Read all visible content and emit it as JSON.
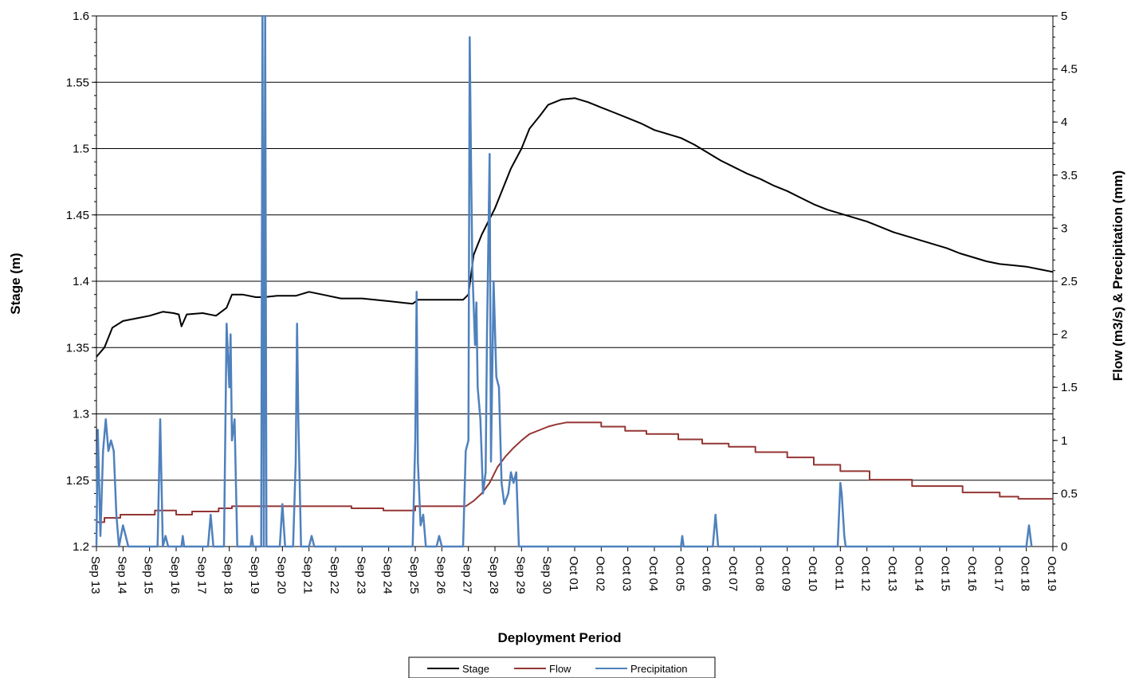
{
  "chart_data": {
    "type": "line",
    "title": "",
    "xlabel": "Deployment Period",
    "ylabel_left": "Stage (m)",
    "ylabel_right": "Flow (m3/s) & Precipitation (mm)",
    "x_tick_labels": [
      "Sep 13",
      "Sep 14",
      "Sep 15",
      "Sep 16",
      "Sep 17",
      "Sep 18",
      "Sep 19",
      "Sep 20",
      "Sep 21",
      "Sep 22",
      "Sep 23",
      "Sep 24",
      "Sep 25",
      "Sep 26",
      "Sep 27",
      "Sep 28",
      "Sep 29",
      "Sep 30",
      "Oct 01",
      "Oct 02",
      "Oct 03",
      "Oct 04",
      "Oct 05",
      "Oct 06",
      "Oct 07",
      "Oct 08",
      "Oct 09",
      "Oct 10",
      "Oct 11",
      "Oct 12",
      "Oct 13",
      "Oct 14",
      "Oct 15",
      "Oct 16",
      "Oct 17",
      "Oct 18",
      "Oct 19"
    ],
    "x_range_days": [
      0,
      36
    ],
    "y_left": {
      "min": 1.2,
      "max": 1.6,
      "step": 0.05,
      "tick_labels": [
        "1.2",
        "1.25",
        "1.3",
        "1.35",
        "1.4",
        "1.45",
        "1.5",
        "1.55",
        "1.6"
      ]
    },
    "y_right": {
      "min": 0,
      "max": 5,
      "step": 0.5,
      "tick_labels": [
        "0",
        "0.5",
        "1",
        "1.5",
        "2",
        "2.5",
        "3",
        "3.5",
        "4",
        "4.5",
        "5"
      ]
    },
    "grid": "horizontal",
    "legend_position": "bottom-center",
    "series": [
      {
        "name": "Stage",
        "axis": "left",
        "color": "#000000",
        "points": [
          [
            0,
            1.343
          ],
          [
            0.3,
            1.35
          ],
          [
            0.6,
            1.365
          ],
          [
            1,
            1.37
          ],
          [
            1.5,
            1.372
          ],
          [
            2,
            1.374
          ],
          [
            2.5,
            1.377
          ],
          [
            2.9,
            1.376
          ],
          [
            3.1,
            1.375
          ],
          [
            3.2,
            1.366
          ],
          [
            3.4,
            1.375
          ],
          [
            4,
            1.376
          ],
          [
            4.5,
            1.374
          ],
          [
            4.9,
            1.38
          ],
          [
            5.1,
            1.39
          ],
          [
            5.5,
            1.39
          ],
          [
            6,
            1.388
          ],
          [
            6.3,
            1.388
          ],
          [
            6.8,
            1.389
          ],
          [
            7.5,
            1.389
          ],
          [
            8,
            1.392
          ],
          [
            8.5,
            1.39
          ],
          [
            9.2,
            1.387
          ],
          [
            10,
            1.387
          ],
          [
            11,
            1.385
          ],
          [
            11.9,
            1.383
          ],
          [
            12.1,
            1.386
          ],
          [
            13,
            1.386
          ],
          [
            13.8,
            1.386
          ],
          [
            14,
            1.39
          ],
          [
            14.2,
            1.42
          ],
          [
            14.5,
            1.435
          ],
          [
            15,
            1.455
          ],
          [
            15.3,
            1.47
          ],
          [
            15.6,
            1.485
          ],
          [
            16,
            1.5
          ],
          [
            16.3,
            1.515
          ],
          [
            16.7,
            1.525
          ],
          [
            17,
            1.533
          ],
          [
            17.5,
            1.537
          ],
          [
            18,
            1.538
          ],
          [
            18.5,
            1.535
          ],
          [
            19,
            1.531
          ],
          [
            19.5,
            1.527
          ],
          [
            20,
            1.523
          ],
          [
            20.5,
            1.519
          ],
          [
            21,
            1.514
          ],
          [
            21.5,
            1.511
          ],
          [
            22,
            1.508
          ],
          [
            22.5,
            1.503
          ],
          [
            23,
            1.497
          ],
          [
            23.5,
            1.491
          ],
          [
            24,
            1.486
          ],
          [
            24.5,
            1.481
          ],
          [
            25,
            1.477
          ],
          [
            25.5,
            1.472
          ],
          [
            26,
            1.468
          ],
          [
            26.5,
            1.463
          ],
          [
            27,
            1.458
          ],
          [
            27.5,
            1.454
          ],
          [
            28,
            1.451
          ],
          [
            28.5,
            1.448
          ],
          [
            29,
            1.445
          ],
          [
            29.5,
            1.441
          ],
          [
            30,
            1.437
          ],
          [
            30.5,
            1.434
          ],
          [
            31,
            1.431
          ],
          [
            31.5,
            1.428
          ],
          [
            32,
            1.425
          ],
          [
            32.5,
            1.421
          ],
          [
            33,
            1.418
          ],
          [
            33.5,
            1.415
          ],
          [
            34,
            1.413
          ],
          [
            34.5,
            1.412
          ],
          [
            35,
            1.411
          ],
          [
            35.5,
            1.409
          ],
          [
            36,
            1.407
          ]
        ]
      },
      {
        "name": "Flow",
        "axis": "right",
        "color": "#943634",
        "points": [
          [
            0,
            0.23
          ],
          [
            0.3,
            0.23
          ],
          [
            0.3,
            0.27
          ],
          [
            0.9,
            0.27
          ],
          [
            0.9,
            0.3
          ],
          [
            2.2,
            0.3
          ],
          [
            2.2,
            0.34
          ],
          [
            3,
            0.34
          ],
          [
            3,
            0.3
          ],
          [
            3.6,
            0.3
          ],
          [
            3.6,
            0.33
          ],
          [
            4.6,
            0.33
          ],
          [
            4.6,
            0.36
          ],
          [
            5.1,
            0.36
          ],
          [
            5.1,
            0.38
          ],
          [
            9.6,
            0.38
          ],
          [
            9.6,
            0.36
          ],
          [
            10.8,
            0.36
          ],
          [
            10.8,
            0.34
          ],
          [
            12,
            0.34
          ],
          [
            12,
            0.38
          ],
          [
            13.9,
            0.38
          ],
          [
            14.2,
            0.43
          ],
          [
            14.5,
            0.5
          ],
          [
            14.8,
            0.6
          ],
          [
            15.1,
            0.75
          ],
          [
            15.4,
            0.85
          ],
          [
            15.7,
            0.93
          ],
          [
            16,
            1.0
          ],
          [
            16.3,
            1.06
          ],
          [
            16.7,
            1.1
          ],
          [
            17,
            1.13
          ],
          [
            17.3,
            1.15
          ],
          [
            17.7,
            1.17
          ],
          [
            19,
            1.17
          ],
          [
            19,
            1.13
          ],
          [
            19.9,
            1.13
          ],
          [
            19.9,
            1.09
          ],
          [
            20.7,
            1.09
          ],
          [
            20.7,
            1.06
          ],
          [
            21.9,
            1.06
          ],
          [
            21.9,
            1.01
          ],
          [
            22.8,
            1.01
          ],
          [
            22.8,
            0.97
          ],
          [
            23.8,
            0.97
          ],
          [
            23.8,
            0.94
          ],
          [
            24.8,
            0.94
          ],
          [
            24.8,
            0.89
          ],
          [
            26,
            0.89
          ],
          [
            26,
            0.84
          ],
          [
            27,
            0.84
          ],
          [
            27,
            0.77
          ],
          [
            28,
            0.77
          ],
          [
            28,
            0.71
          ],
          [
            29.1,
            0.71
          ],
          [
            29.1,
            0.63
          ],
          [
            30.7,
            0.63
          ],
          [
            30.7,
            0.57
          ],
          [
            32.6,
            0.57
          ],
          [
            32.6,
            0.51
          ],
          [
            34,
            0.51
          ],
          [
            34,
            0.47
          ],
          [
            34.7,
            0.47
          ],
          [
            34.7,
            0.45
          ],
          [
            36,
            0.45
          ]
        ]
      },
      {
        "name": "Precipitation",
        "axis": "right",
        "color": "#4F81BD",
        "points": [
          [
            0,
            0
          ],
          [
            0.05,
            1.1
          ],
          [
            0.15,
            0.1
          ],
          [
            0.25,
            0.9
          ],
          [
            0.35,
            1.2
          ],
          [
            0.45,
            0.9
          ],
          [
            0.55,
            1.0
          ],
          [
            0.65,
            0.9
          ],
          [
            0.75,
            0.3
          ],
          [
            0.85,
            0
          ],
          [
            1.0,
            0.2
          ],
          [
            1.1,
            0.1
          ],
          [
            1.2,
            0
          ],
          [
            2.3,
            0
          ],
          [
            2.4,
            1.2
          ],
          [
            2.5,
            0
          ],
          [
            2.6,
            0.1
          ],
          [
            2.7,
            0
          ],
          [
            3.2,
            0
          ],
          [
            3.25,
            0.1
          ],
          [
            3.3,
            0
          ],
          [
            4.2,
            0
          ],
          [
            4.3,
            0.3
          ],
          [
            4.4,
            0
          ],
          [
            4.8,
            0
          ],
          [
            4.9,
            2.1
          ],
          [
            5.0,
            1.5
          ],
          [
            5.05,
            2.0
          ],
          [
            5.1,
            1.0
          ],
          [
            5.2,
            1.2
          ],
          [
            5.3,
            0
          ],
          [
            5.8,
            0
          ],
          [
            5.85,
            0.1
          ],
          [
            5.9,
            0
          ],
          [
            6.2,
            0
          ],
          [
            6.25,
            5.0
          ],
          [
            6.3,
            0
          ],
          [
            6.35,
            5.0
          ],
          [
            6.4,
            0
          ],
          [
            6.9,
            0
          ],
          [
            7.0,
            0.4
          ],
          [
            7.1,
            0
          ],
          [
            7.4,
            0
          ],
          [
            7.5,
            0.8
          ],
          [
            7.55,
            2.1
          ],
          [
            7.6,
            1.2
          ],
          [
            7.7,
            0
          ],
          [
            8.0,
            0
          ],
          [
            8.1,
            0.1
          ],
          [
            8.2,
            0
          ],
          [
            11.9,
            0
          ],
          [
            12.0,
            1.0
          ],
          [
            12.05,
            2.4
          ],
          [
            12.1,
            0.8
          ],
          [
            12.2,
            0.2
          ],
          [
            12.3,
            0.3
          ],
          [
            12.4,
            0
          ],
          [
            12.8,
            0
          ],
          [
            12.9,
            0.1
          ],
          [
            13.0,
            0
          ],
          [
            13.8,
            0
          ],
          [
            13.9,
            0.9
          ],
          [
            14.0,
            1.0
          ],
          [
            14.05,
            4.8
          ],
          [
            14.1,
            3.6
          ],
          [
            14.15,
            2.6
          ],
          [
            14.25,
            1.9
          ],
          [
            14.3,
            2.3
          ],
          [
            14.35,
            1.5
          ],
          [
            14.45,
            1.2
          ],
          [
            14.55,
            0.5
          ],
          [
            14.65,
            0.7
          ],
          [
            14.7,
            2.0
          ],
          [
            14.8,
            3.7
          ],
          [
            14.85,
            0.8
          ],
          [
            14.95,
            2.5
          ],
          [
            15.05,
            1.6
          ],
          [
            15.15,
            1.5
          ],
          [
            15.25,
            0.6
          ],
          [
            15.35,
            0.4
          ],
          [
            15.5,
            0.5
          ],
          [
            15.6,
            0.7
          ],
          [
            15.7,
            0.6
          ],
          [
            15.8,
            0.7
          ],
          [
            15.9,
            0
          ],
          [
            16.1,
            0
          ],
          [
            22.0,
            0
          ],
          [
            22.05,
            0.1
          ],
          [
            22.1,
            0
          ],
          [
            23.2,
            0
          ],
          [
            23.3,
            0.3
          ],
          [
            23.4,
            0
          ],
          [
            27.9,
            0
          ],
          [
            28.0,
            0.6
          ],
          [
            28.05,
            0.5
          ],
          [
            28.15,
            0.1
          ],
          [
            28.2,
            0
          ],
          [
            35.0,
            0
          ],
          [
            35.1,
            0.2
          ],
          [
            35.2,
            0
          ]
        ]
      }
    ]
  }
}
